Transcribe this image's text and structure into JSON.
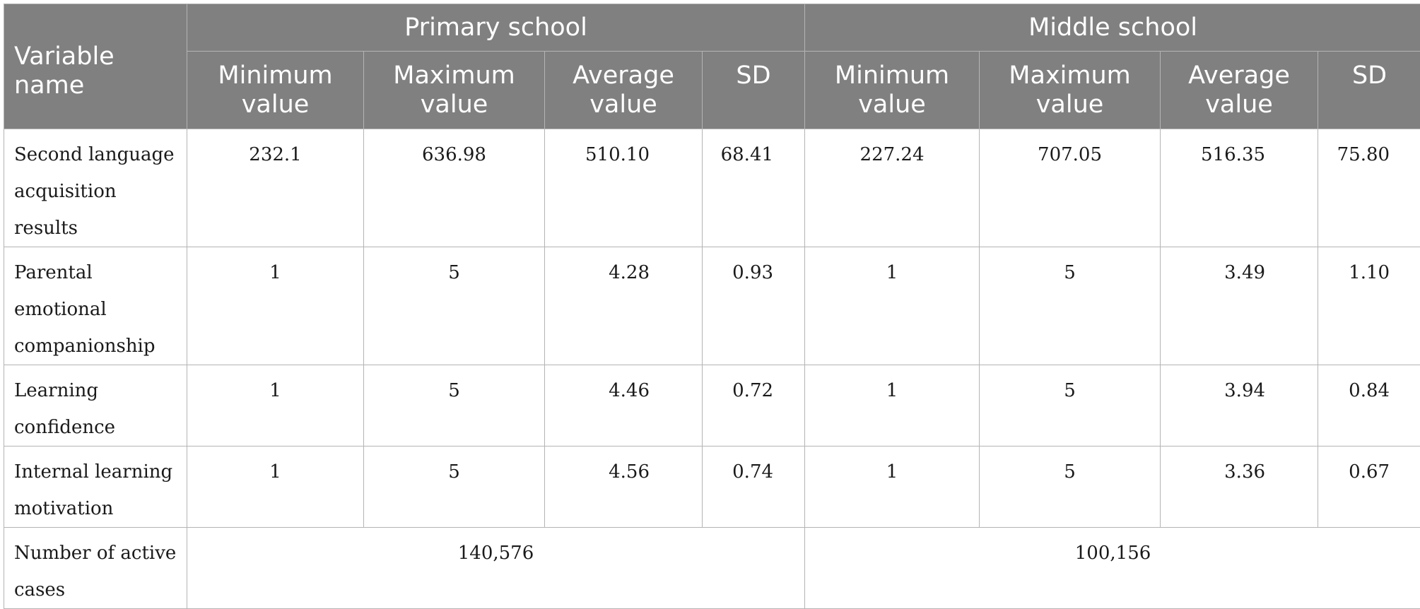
{
  "table": {
    "header": {
      "variable_name": "Variable name",
      "groups": [
        "Primary school",
        "Middle school"
      ],
      "columns": [
        "Minimum value",
        "Maximum value",
        "Average value",
        "SD"
      ]
    },
    "rows": [
      {
        "name": "Second language acquisition results",
        "primary": [
          "232.1",
          "636.98",
          "510.10",
          "68.41"
        ],
        "middle": [
          "227.24",
          "707.05",
          "516.35",
          "75.80"
        ]
      },
      {
        "name": "Parental emotional companionship",
        "primary": [
          "1",
          "5",
          "4.28",
          "0.93"
        ],
        "middle": [
          "1",
          "5",
          "3.49",
          "1.10"
        ]
      },
      {
        "name": "Learning confidence",
        "primary": [
          "1",
          "5",
          "4.46",
          "0.72"
        ],
        "middle": [
          "1",
          "5",
          "3.94",
          "0.84"
        ]
      },
      {
        "name": "Internal learning motivation",
        "primary": [
          "1",
          "5",
          "4.56",
          "0.74"
        ],
        "middle": [
          "1",
          "5",
          "3.36",
          "0.67"
        ]
      }
    ],
    "totals": {
      "name": "Number of active cases",
      "primary": "140,576",
      "middle": "100,156"
    }
  }
}
